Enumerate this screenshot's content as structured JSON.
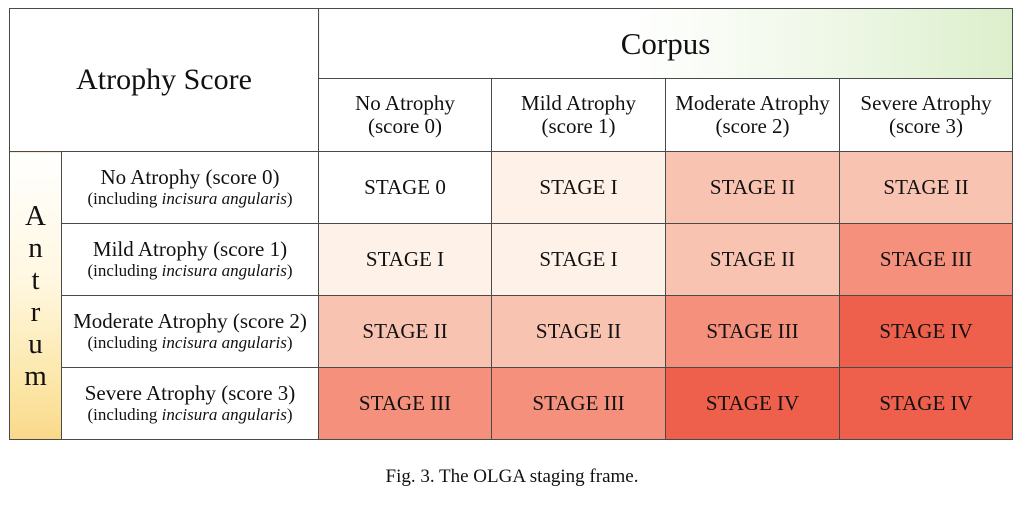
{
  "table": {
    "title": "Atrophy Score",
    "corpus_label": "Corpus",
    "antrum_letters": [
      "A",
      "n",
      "t",
      "r",
      "u",
      "m"
    ],
    "columns": [
      {
        "line1": "No Atrophy",
        "line2": "(score 0)"
      },
      {
        "line1": "Mild Atrophy",
        "line2": "(score 1)"
      },
      {
        "line1": "Moderate Atrophy",
        "line2": "(score 2)"
      },
      {
        "line1": "Severe Atrophy",
        "line2": "(score 3)"
      }
    ],
    "rows": [
      {
        "label": "No Atrophy (score 0)",
        "sub_prefix": "(including ",
        "sub_italic": "incisura angularis",
        "sub_suffix": ")",
        "cells": [
          "STAGE 0",
          "STAGE I",
          "STAGE II",
          "STAGE II"
        ]
      },
      {
        "label": "Mild Atrophy (score 1)",
        "sub_prefix": "(including ",
        "sub_italic": "incisura angularis",
        "sub_suffix": ")",
        "cells": [
          "STAGE I",
          "STAGE I",
          "STAGE II",
          "STAGE III"
        ]
      },
      {
        "label": "Moderate Atrophy (score 2)",
        "sub_prefix": "(including ",
        "sub_italic": "incisura angularis",
        "sub_suffix": ")",
        "cells": [
          "STAGE II",
          "STAGE II",
          "STAGE III",
          "STAGE IV"
        ]
      },
      {
        "label": "Severe Atrophy (score 3)",
        "sub_prefix": "(including ",
        "sub_italic": "incisura angularis",
        "sub_suffix": ")",
        "cells": [
          "STAGE III",
          "STAGE III",
          "STAGE IV",
          "STAGE IV"
        ]
      }
    ],
    "stage_colors": {
      "STAGE 0": "#ffffff",
      "STAGE I": "#fdf1e8",
      "STAGE II": "#f9c3b1",
      "STAGE III": "#f4907c",
      "STAGE IV": "#ee5f4c"
    }
  },
  "caption": "Fig. 3.  The OLGA staging frame."
}
